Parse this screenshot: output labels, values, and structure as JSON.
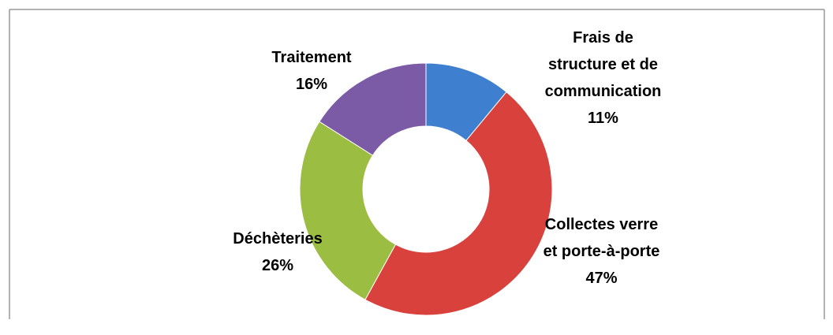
{
  "chart_data": {
    "type": "donut",
    "categories": [
      "Frais de structure et de communication",
      "Collectes verre et porte-à-porte",
      "Déchèteries",
      "Traitement"
    ],
    "values": [
      11,
      47,
      26,
      16
    ],
    "value_labels": [
      "11%",
      "47%",
      "26%",
      "16%"
    ],
    "colors": [
      "#3f7fcf",
      "#d8413c",
      "#9bbd42",
      "#7b5ba6"
    ]
  }
}
